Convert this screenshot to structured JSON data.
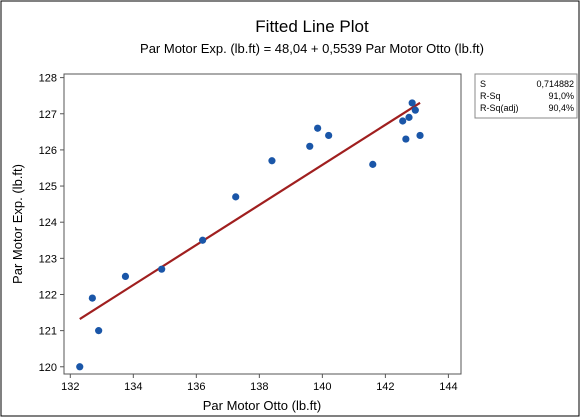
{
  "chart_data": {
    "type": "scatter",
    "title": "Fitted Line Plot",
    "subtitle": "Par Motor Exp. (lb.ft) = 48,04 + 0,5539 Par Motor Otto (lb.ft)",
    "xlabel": "Par Motor Otto (lb.ft)",
    "ylabel": "Par Motor Exp. (lb.ft)",
    "xlim": [
      131.8,
      144.4
    ],
    "ylim": [
      119.8,
      128.1
    ],
    "xticks": [
      132,
      134,
      136,
      138,
      140,
      142,
      144
    ],
    "yticks": [
      120,
      121,
      122,
      123,
      124,
      125,
      126,
      127,
      128
    ],
    "grid": false,
    "fit_line": {
      "intercept": 48.04,
      "slope": 0.5539,
      "x_range": [
        132.3,
        143.1
      ],
      "color": "#a01f1f"
    },
    "point_color": "#1a56a8",
    "points": [
      {
        "x": 132.3,
        "y": 120.0
      },
      {
        "x": 132.7,
        "y": 121.9
      },
      {
        "x": 132.9,
        "y": 121.0
      },
      {
        "x": 133.75,
        "y": 122.5
      },
      {
        "x": 134.9,
        "y": 122.7
      },
      {
        "x": 136.2,
        "y": 123.5
      },
      {
        "x": 137.25,
        "y": 124.7
      },
      {
        "x": 138.4,
        "y": 125.7
      },
      {
        "x": 139.6,
        "y": 126.1
      },
      {
        "x": 139.85,
        "y": 126.6
      },
      {
        "x": 140.2,
        "y": 126.4
      },
      {
        "x": 141.6,
        "y": 125.6
      },
      {
        "x": 142.55,
        "y": 126.8
      },
      {
        "x": 142.65,
        "y": 126.3
      },
      {
        "x": 142.75,
        "y": 126.9
      },
      {
        "x": 142.85,
        "y": 127.3
      },
      {
        "x": 142.95,
        "y": 127.1
      },
      {
        "x": 143.1,
        "y": 126.4
      }
    ],
    "stats": [
      {
        "label": "S",
        "value": "0,714882"
      },
      {
        "label": "R-Sq",
        "value": "91,0%"
      },
      {
        "label": "R-Sq(adj)",
        "value": "90,4%"
      }
    ]
  }
}
